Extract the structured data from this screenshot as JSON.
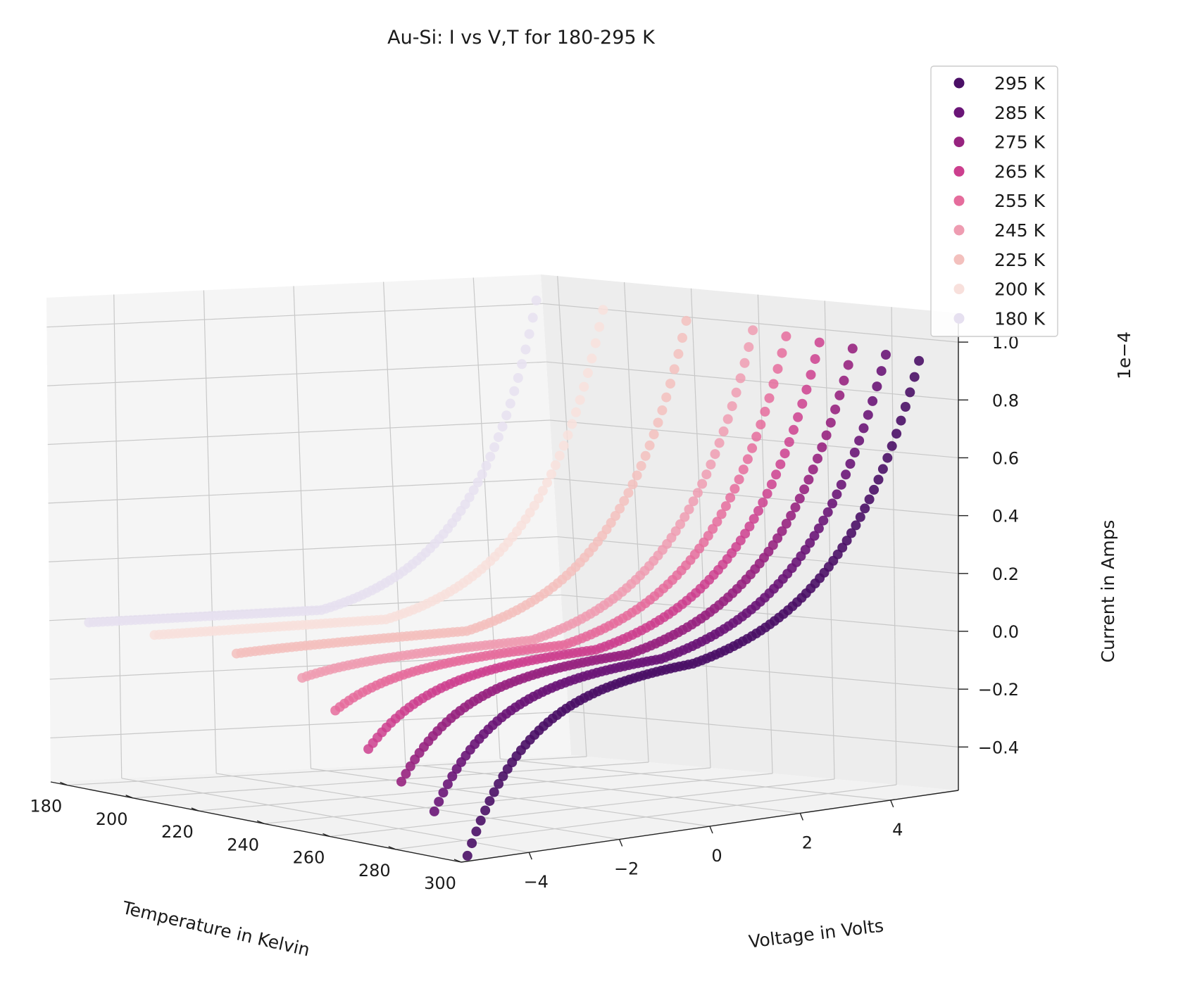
{
  "chart_data": {
    "type": "scatter",
    "projection": "3d",
    "title": "Au-Si: I vs V,T for 180-295 K",
    "xlabel": "Temperature in Kelvin",
    "ylabel": "Voltage in Volts",
    "zlabel": "Current in Amps",
    "z_offset_label": "1e−4",
    "x_ticks": [
      "180",
      "200",
      "220",
      "240",
      "260",
      "280",
      "300"
    ],
    "y_ticks": [
      "−4",
      "−2",
      "0",
      "2",
      "4"
    ],
    "z_ticks": [
      "−0.4",
      "−0.2",
      "0.0",
      "0.2",
      "0.4",
      "0.6",
      "0.8",
      "1.0"
    ],
    "xlim": [
      175,
      300
    ],
    "ylim": [
      -5.5,
      5.5
    ],
    "zlim": [
      -0.55,
      1.1
    ],
    "z_scale": 0.0001,
    "grid": true,
    "legend_position": "top-right",
    "voltage_sweep": {
      "min": -5,
      "max": 5,
      "points_per_series": 101
    },
    "series": [
      {
        "name": "295 K",
        "temperature": 295,
        "color": "#4a0f66",
        "current_at_neg5V": -0.55,
        "current_at_pos5V": 0.94
      },
      {
        "name": "285 K",
        "temperature": 285,
        "color": "#6a1577",
        "current_at_neg5V": -0.42,
        "current_at_pos5V": 0.95
      },
      {
        "name": "275 K",
        "temperature": 275,
        "color": "#97237f",
        "current_at_neg5V": -0.34,
        "current_at_pos5V": 0.96
      },
      {
        "name": "265 K",
        "temperature": 265,
        "color": "#cc3f8e",
        "current_at_neg5V": -0.25,
        "current_at_pos5V": 0.97
      },
      {
        "name": "255 K",
        "temperature": 255,
        "color": "#e56c9c",
        "current_at_neg5V": -0.14,
        "current_at_pos5V": 0.98
      },
      {
        "name": "245 K",
        "temperature": 245,
        "color": "#ee9cb1",
        "current_at_neg5V": -0.05,
        "current_at_pos5V": 0.99
      },
      {
        "name": "225 K",
        "temperature": 225,
        "color": "#f3c0bd",
        "current_at_neg5V": -0.01,
        "current_at_pos5V": 1.0
      },
      {
        "name": "200 K",
        "temperature": 200,
        "color": "#f8e0dc",
        "current_at_neg5V": 0.0,
        "current_at_pos5V": 1.01
      },
      {
        "name": "180 K",
        "temperature": 180,
        "color": "#e6e0f0",
        "current_at_neg5V": 0.0,
        "current_at_pos5V": 1.02
      }
    ]
  }
}
